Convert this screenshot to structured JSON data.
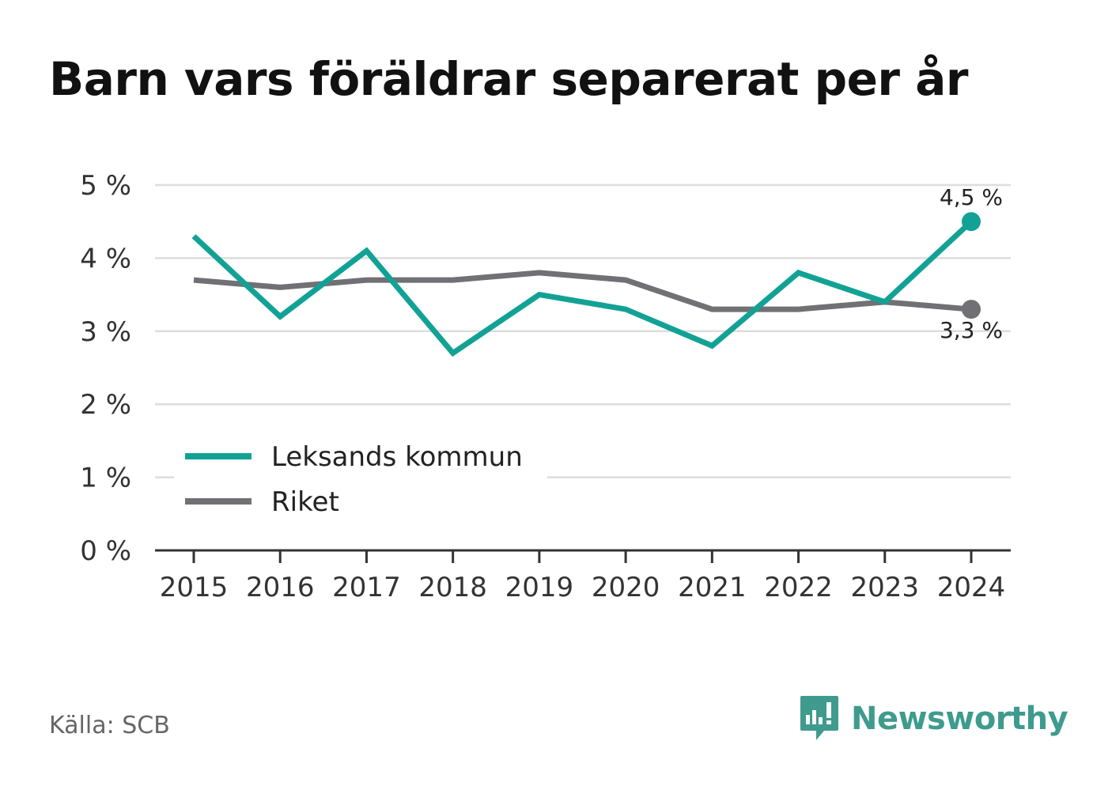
{
  "chart_data": {
    "type": "line",
    "title": "Barn vars föräldrar separerat per år",
    "x": [
      "2015",
      "2016",
      "2017",
      "2018",
      "2019",
      "2020",
      "2021",
      "2022",
      "2023",
      "2024"
    ],
    "series": [
      {
        "name": "Leksands kommun",
        "color": "#12a295",
        "values": [
          4.3,
          3.2,
          4.1,
          2.7,
          3.5,
          3.3,
          2.8,
          3.8,
          3.4,
          4.5
        ],
        "end_label": "4,5 %"
      },
      {
        "name": "Riket",
        "color": "#717075",
        "values": [
          3.7,
          3.6,
          3.7,
          3.7,
          3.8,
          3.7,
          3.3,
          3.3,
          3.4,
          3.3
        ],
        "end_label": "3,3 %"
      }
    ],
    "ylim": [
      0,
      5
    ],
    "y_ticks": [
      0,
      1,
      2,
      3,
      4,
      5
    ],
    "y_tick_labels": [
      "0 %",
      "1 %",
      "2 %",
      "3 %",
      "4 %",
      "5 %"
    ],
    "grid": true,
    "legend_position": "bottom-left"
  },
  "footer": {
    "source": "Källa: SCB",
    "brand_name": "Newsworthy",
    "brand_icon": "bar-chart-speech-bubble-icon",
    "brand_color": "#3e9b8e"
  }
}
